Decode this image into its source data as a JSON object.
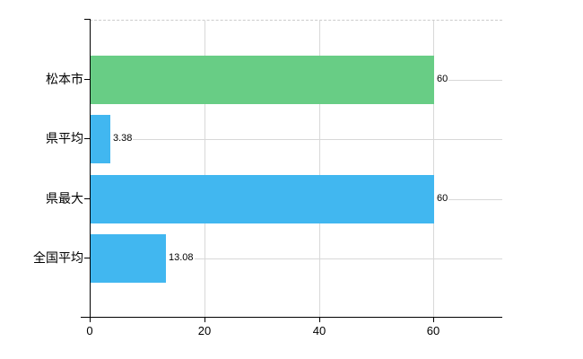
{
  "chart_data": {
    "type": "bar",
    "orientation": "horizontal",
    "title": "",
    "xlabel": "",
    "ylabel": "",
    "categories": [
      "松本市",
      "県平均",
      "県最大",
      "全国平均"
    ],
    "values": [
      60,
      3.38,
      60,
      13.08
    ],
    "value_labels": [
      "60",
      "3.38",
      "60",
      "13.08"
    ],
    "bar_colors": [
      "#68cd85",
      "#41b7f0",
      "#41b7f0",
      "#41b7f0"
    ],
    "x_ticks": [
      0,
      20,
      40,
      60
    ],
    "x_tick_labels": [
      "0",
      "20",
      "40",
      "60"
    ],
    "xlim": [
      0,
      72
    ],
    "grid": true,
    "legend": "none",
    "colors": {
      "green_bar": "#68cd85",
      "blue_bar": "#41b7f0",
      "gridline": "#d8d8d8",
      "border_dashed": "#cccccc",
      "axis": "#000000",
      "text": "#000000",
      "background": "#ffffff"
    }
  }
}
